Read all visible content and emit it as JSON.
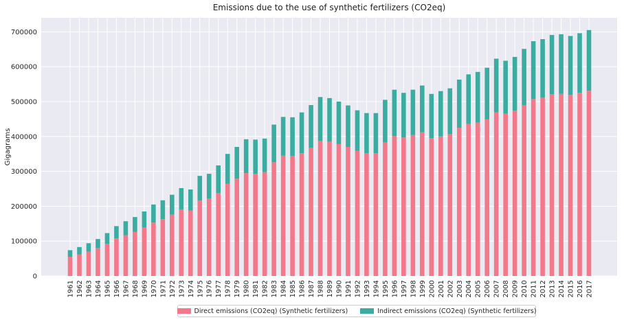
{
  "chart_data": {
    "type": "bar",
    "stacked": true,
    "title": "Emissions due to the use of synthetic fertilizers (CO2eq)",
    "xlabel": "",
    "ylabel": "Gigagrams",
    "ylim": [
      0,
      740000
    ],
    "yticks": [
      0,
      100000,
      200000,
      300000,
      400000,
      500000,
      600000,
      700000
    ],
    "ytick_labels": [
      "0",
      "100000",
      "200000",
      "300000",
      "400000",
      "500000",
      "600000",
      "700000"
    ],
    "grid": true,
    "legend_position": "bottom-center",
    "categories": [
      "1961",
      "1962",
      "1963",
      "1964",
      "1965",
      "1966",
      "1967",
      "1968",
      "1969",
      "1970",
      "1971",
      "1972",
      "1973",
      "1974",
      "1975",
      "1976",
      "1977",
      "1978",
      "1979",
      "1980",
      "1981",
      "1982",
      "1983",
      "1984",
      "1985",
      "1986",
      "1987",
      "1988",
      "1989",
      "1990",
      "1991",
      "1992",
      "1993",
      "1994",
      "1995",
      "1996",
      "1997",
      "1998",
      "1999",
      "2000",
      "2001",
      "2002",
      "2003",
      "2004",
      "2005",
      "2006",
      "2007",
      "2008",
      "2009",
      "2010",
      "2011",
      "2012",
      "2013",
      "2014",
      "2015",
      "2016",
      "2017"
    ],
    "series": [
      {
        "name": "Direct emissions (CO2eq) (Synthetic fertilizers)",
        "color": "#f3788a",
        "values": [
          55000,
          62000,
          70000,
          80000,
          92000,
          108000,
          117000,
          127000,
          139000,
          153000,
          163000,
          176000,
          191000,
          188000,
          216000,
          222000,
          238000,
          264000,
          279000,
          295000,
          293000,
          298000,
          326000,
          345000,
          344000,
          352000,
          368000,
          387000,
          385000,
          378000,
          370000,
          359000,
          352000,
          352000,
          383000,
          401000,
          397000,
          404000,
          412000,
          395000,
          400000,
          406000,
          425000,
          436000,
          440000,
          449000,
          469000,
          465000,
          474000,
          490000,
          507000,
          511000,
          521000,
          522000,
          519000,
          525000,
          531000
        ]
      },
      {
        "name": "Indirect emissions (CO2eq) (Synthetic fertilizers)",
        "color": "#3aada0",
        "values": [
          19000,
          21000,
          24000,
          26000,
          31000,
          35000,
          40000,
          42000,
          46000,
          52000,
          54000,
          57000,
          61000,
          60000,
          71000,
          71000,
          79000,
          86000,
          91000,
          97000,
          98000,
          96000,
          108000,
          111000,
          111000,
          117000,
          122000,
          126000,
          125000,
          122000,
          119000,
          116000,
          115000,
          115000,
          122000,
          133000,
          128000,
          130000,
          134000,
          127000,
          130000,
          132000,
          138000,
          142000,
          145000,
          148000,
          154000,
          152000,
          154000,
          161000,
          166000,
          168000,
          170000,
          171000,
          169000,
          171000,
          174000
        ]
      }
    ]
  }
}
